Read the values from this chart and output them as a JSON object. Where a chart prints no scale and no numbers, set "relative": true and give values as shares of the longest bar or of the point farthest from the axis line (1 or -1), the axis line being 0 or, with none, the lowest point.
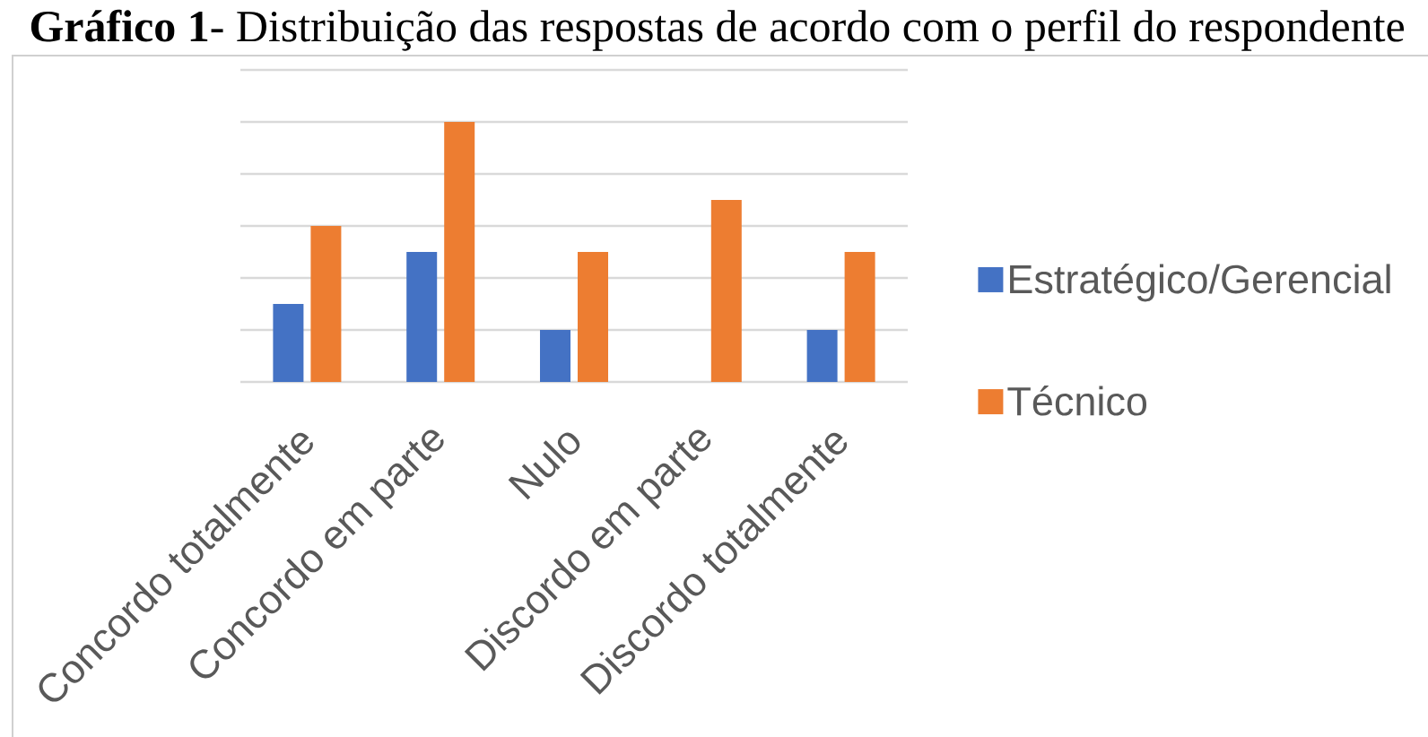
{
  "chart_data": {
    "type": "bar",
    "title": "**Gráfico 1**- Distribuição das respostas de acordo com o perfil do respondente",
    "categories": [
      "Concordo totalmente",
      "Concordo em parte",
      "Nulo",
      "Discordo em parte",
      "Discordo totalmente"
    ],
    "series": [
      {
        "name": "Estratégico/Gerencial",
        "color": "#4472c4",
        "values": [
          0.3,
          0.5,
          0.2,
          0,
          0.2
        ]
      },
      {
        "name": "Técnico",
        "color": "#ed7d31",
        "values": [
          0.6,
          1,
          0.5,
          0.7,
          0.5
        ]
      }
    ],
    "relative": true,
    "grid": "y",
    "legend": "right"
  }
}
